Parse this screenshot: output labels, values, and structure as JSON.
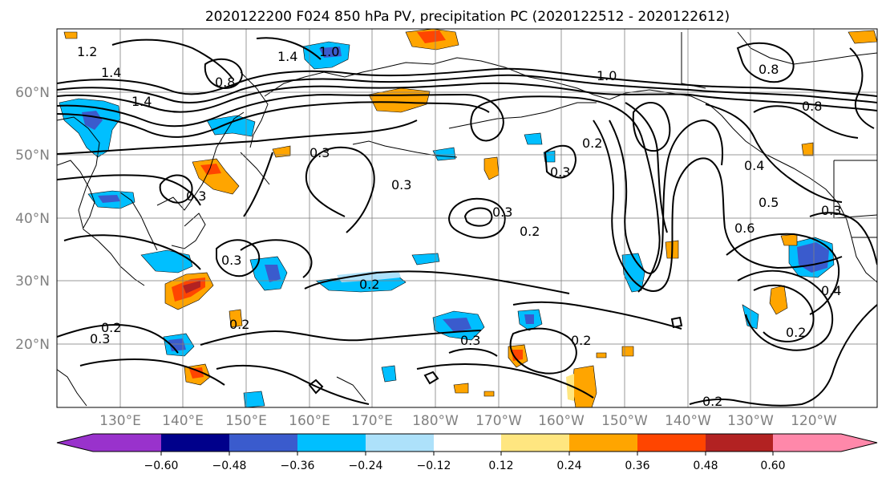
{
  "title": "2020122200 F024 850 hPa PV, precipitation PC (2020122512 - 2020122612)",
  "lat_labels": [
    "60°N",
    "50°N",
    "40°N",
    "30°N",
    "20°N"
  ],
  "lon_labels": [
    "130°E",
    "140°E",
    "150°E",
    "160°E",
    "170°E",
    "180°W",
    "170°W",
    "160°W",
    "150°W",
    "140°W",
    "130°W",
    "120°W"
  ],
  "colorbar": {
    "colors": [
      "#9932CC",
      "#00008B",
      "#3A5BCD",
      "#00BFFF",
      "#ADE1FA",
      "#FFFFFF",
      "#FFE680",
      "#FFA500",
      "#FF4500",
      "#B22222",
      "#FF88AA"
    ],
    "tick_labels": [
      "−0.60",
      "−0.48",
      "−0.36",
      "−0.24",
      "−0.12",
      "0.12",
      "0.24",
      "0.36",
      "0.48",
      "0.60"
    ]
  },
  "contour_labels": [
    "1.2",
    "1.4",
    "1.0",
    "1.4",
    "0.8",
    "1.4",
    "1.0",
    "0.8",
    "0.8",
    "0.3",
    "0.3",
    "0.3",
    "0.3",
    "0.2",
    "0.3",
    "0.2",
    "0.3",
    "0.2",
    "0.2",
    "0.3",
    "0.2",
    "0.3",
    "0.2",
    "0.4",
    "0.5",
    "0.6",
    "0.3",
    "0.4",
    "0.2",
    "0.2"
  ]
}
